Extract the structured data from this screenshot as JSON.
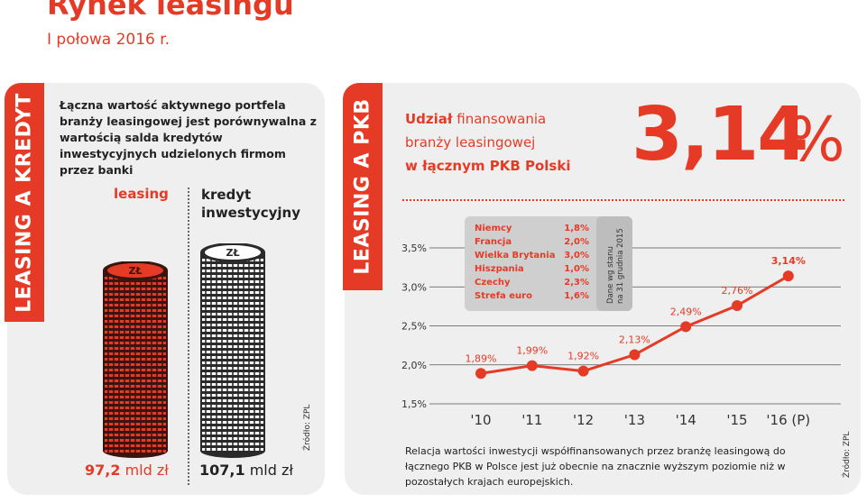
{
  "header": {
    "title": "Rynek leasingu",
    "subtitle": "I połowa 2016 r."
  },
  "left_panel": {
    "band_label": "LEASING A KREDYT",
    "description": "Łączna wartość aktywnego portfela branży leasingowej jest porównywalna z wartością salda kredytów inwestycyjnych udzielonych firmom przez banki",
    "leasing_label": "leasing",
    "kredyt_label_1": "kredyt",
    "kredyt_label_2": "inwestycyjny",
    "coin_label": "ZŁ",
    "leasing_value": "97,2",
    "kredyt_value": "107,1",
    "unit": "mld zł",
    "source": "Źródło: ZPL",
    "comparison": [
      {
        "name": "leasing",
        "value": 97.2,
        "color": "#e53b26"
      },
      {
        "name": "kredyt inwestycyjny",
        "value": 107.1,
        "color": "#ffffff"
      }
    ]
  },
  "right_panel": {
    "band_label": "LEASING A PKB",
    "udzial_bold": "Udział",
    "udzial_rest": " finansowania",
    "line2": "branży leasingowej",
    "line3": "w łącznym PKB Polski",
    "big_value": "3,14",
    "big_pct": "%",
    "source": "Źródło: ZPL",
    "footnote": "Relacja wartości inwestycji współfinansowanych przez branżę  leasingową do łącznego PKB w Polsce jest już obecnie  na znacznie wyższym poziomie niż w pozostałych krajach europejskich."
  },
  "chart_data": {
    "type": "line",
    "x": [
      "'10",
      "'11",
      "'12",
      "'13",
      "'14",
      "'15",
      "'16 (P)"
    ],
    "values": [
      1.89,
      1.99,
      1.92,
      2.13,
      2.49,
      2.76,
      3.14
    ],
    "data_labels": [
      "1,89%",
      "1,99%",
      "1,92%",
      "2,13%",
      "2,49%",
      "2,76%",
      "3,14%"
    ],
    "y_ticks": [
      1.5,
      2.0,
      2.5,
      3.0,
      3.5
    ],
    "y_tick_labels": [
      "1,5%",
      "2,0%",
      "2,5%",
      "3,0%",
      "3,5%"
    ],
    "ylim": [
      1.5,
      3.5
    ],
    "grid": true,
    "line_color": "#e53b26",
    "inset_table": {
      "rows": [
        {
          "country": "Niemcy",
          "value": "1,8%"
        },
        {
          "country": "Francja",
          "value": "2,0%"
        },
        {
          "country": "Wielka Brytania",
          "value": "3,0%"
        },
        {
          "country": "Hiszpania",
          "value": "1,0%"
        },
        {
          "country": "Czechy",
          "value": "2,3%"
        },
        {
          "country": "Strefa euro",
          "value": "1,6%"
        }
      ],
      "note_1": "Dane wg stanu",
      "note_2": "na 31 grudnia 2015"
    }
  }
}
